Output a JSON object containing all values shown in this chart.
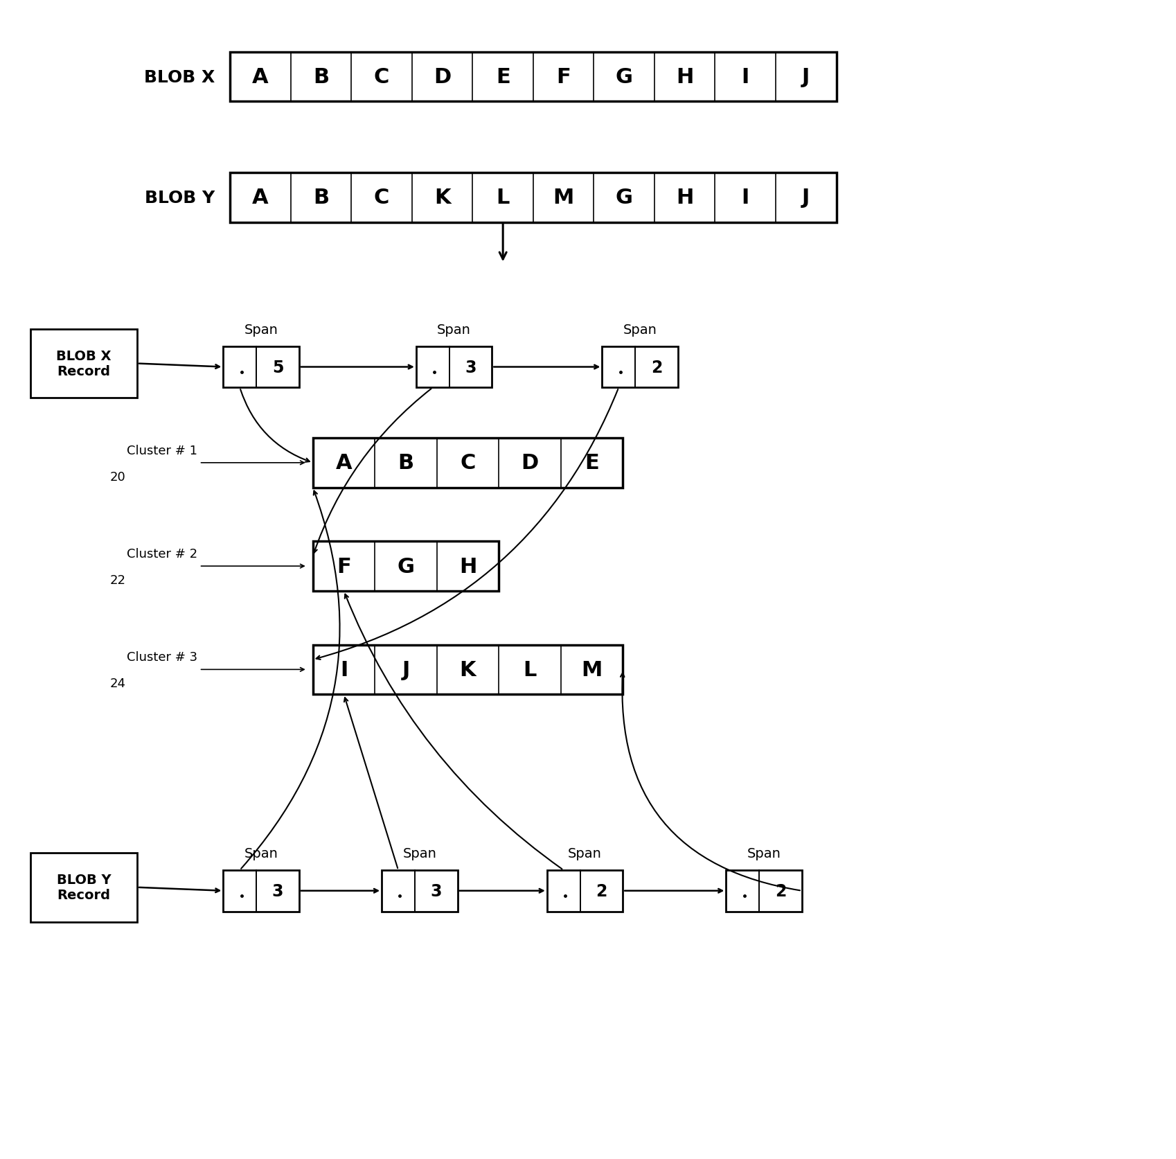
{
  "background_color": "#ffffff",
  "blob_x_label": "BLOB X",
  "blob_x_cells": [
    "A",
    "B",
    "C",
    "D",
    "E",
    "F",
    "G",
    "H",
    "I",
    "J"
  ],
  "blob_y_label": "BLOB Y",
  "blob_y_cells": [
    "A",
    "B",
    "C",
    "K",
    "L",
    "M",
    "G",
    "H",
    "I",
    "J"
  ],
  "cluster1_label": "Cluster # 1",
  "cluster1_num": "20",
  "cluster1_cells": [
    "A",
    "B",
    "C",
    "D",
    "E"
  ],
  "cluster2_label": "Cluster # 2",
  "cluster2_num": "22",
  "cluster2_cells": [
    "F",
    "G",
    "H"
  ],
  "cluster3_label": "Cluster # 3",
  "cluster3_num": "24",
  "cluster3_cells": [
    "I",
    "J",
    "K",
    "L",
    "M"
  ],
  "blob_x_record_label": "BLOB X\nRecord",
  "blob_y_record_label": "BLOB Y\nRecord",
  "span_x_values": [
    "5",
    "3",
    "2"
  ],
  "span_y_values": [
    "3",
    "3",
    "2",
    "2"
  ]
}
